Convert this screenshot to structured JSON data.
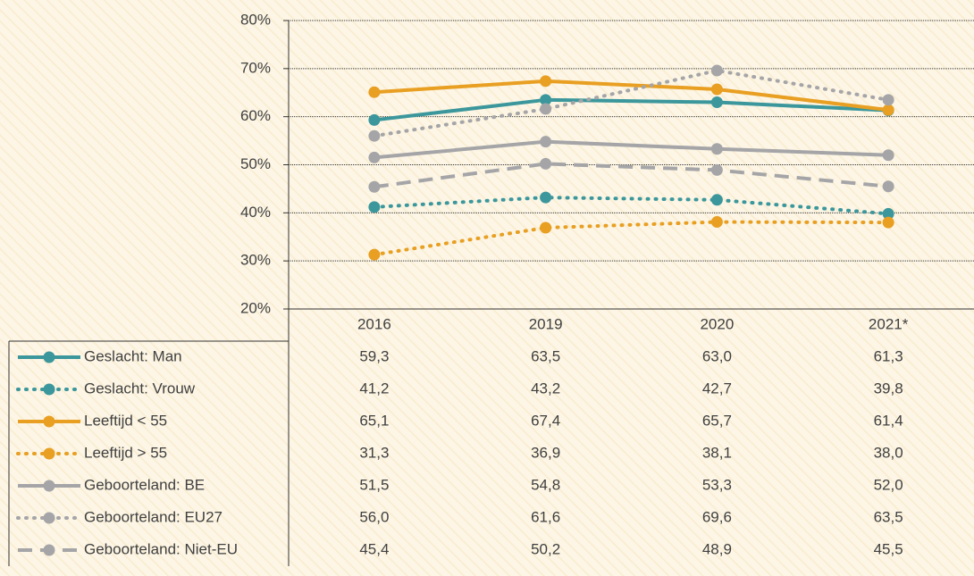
{
  "chart_data": {
    "type": "line",
    "categories": [
      "2016",
      "2019",
      "2020",
      "2021*"
    ],
    "ylim": [
      20,
      80
    ],
    "yticks": [
      {
        "value": 20,
        "label": "20%"
      },
      {
        "value": 30,
        "label": "30%"
      },
      {
        "value": 40,
        "label": "40%"
      },
      {
        "value": 50,
        "label": "50%"
      },
      {
        "value": 60,
        "label": "60%"
      },
      {
        "value": 70,
        "label": "70%"
      },
      {
        "value": 80,
        "label": "80%"
      }
    ],
    "grid": true,
    "series": [
      {
        "name": "Geslacht: Man",
        "color": "#3b979c",
        "line_style": "solid",
        "values": [
          59.3,
          63.5,
          63.0,
          61.3
        ],
        "value_labels": [
          "59,3",
          "63,5",
          "63,0",
          "61,3"
        ]
      },
      {
        "name": "Geslacht: Vrouw",
        "color": "#3b979c",
        "line_style": "dotted",
        "values": [
          41.2,
          43.2,
          42.7,
          39.8
        ],
        "value_labels": [
          "41,2",
          "43,2",
          "42,7",
          "39,8"
        ]
      },
      {
        "name": "Leeftijd < 55",
        "color": "#e89f22",
        "line_style": "solid",
        "values": [
          65.1,
          67.4,
          65.7,
          61.4
        ],
        "value_labels": [
          "65,1",
          "67,4",
          "65,7",
          "61,4"
        ]
      },
      {
        "name": "Leeftijd > 55",
        "color": "#e89f22",
        "line_style": "dotted",
        "values": [
          31.3,
          36.9,
          38.1,
          38.0
        ],
        "value_labels": [
          "31,3",
          "36,9",
          "38,1",
          "38,0"
        ]
      },
      {
        "name": "Geboorteland: BE",
        "color": "#a5a5a8",
        "line_style": "solid",
        "values": [
          51.5,
          54.8,
          53.3,
          52.0
        ],
        "value_labels": [
          "51,5",
          "54,8",
          "53,3",
          "52,0"
        ]
      },
      {
        "name": "Geboorteland: EU27",
        "color": "#a5a5a8",
        "line_style": "dotted",
        "values": [
          56.0,
          61.6,
          69.6,
          63.5
        ],
        "value_labels": [
          "56,0",
          "61,6",
          "69,6",
          "63,5"
        ]
      },
      {
        "name": "Geboorteland: Niet-EU",
        "color": "#a5a5a8",
        "line_style": "dashed",
        "values": [
          45.4,
          50.2,
          48.9,
          45.5
        ],
        "value_labels": [
          "45,4",
          "50,2",
          "48,9",
          "45,5"
        ]
      }
    ]
  }
}
